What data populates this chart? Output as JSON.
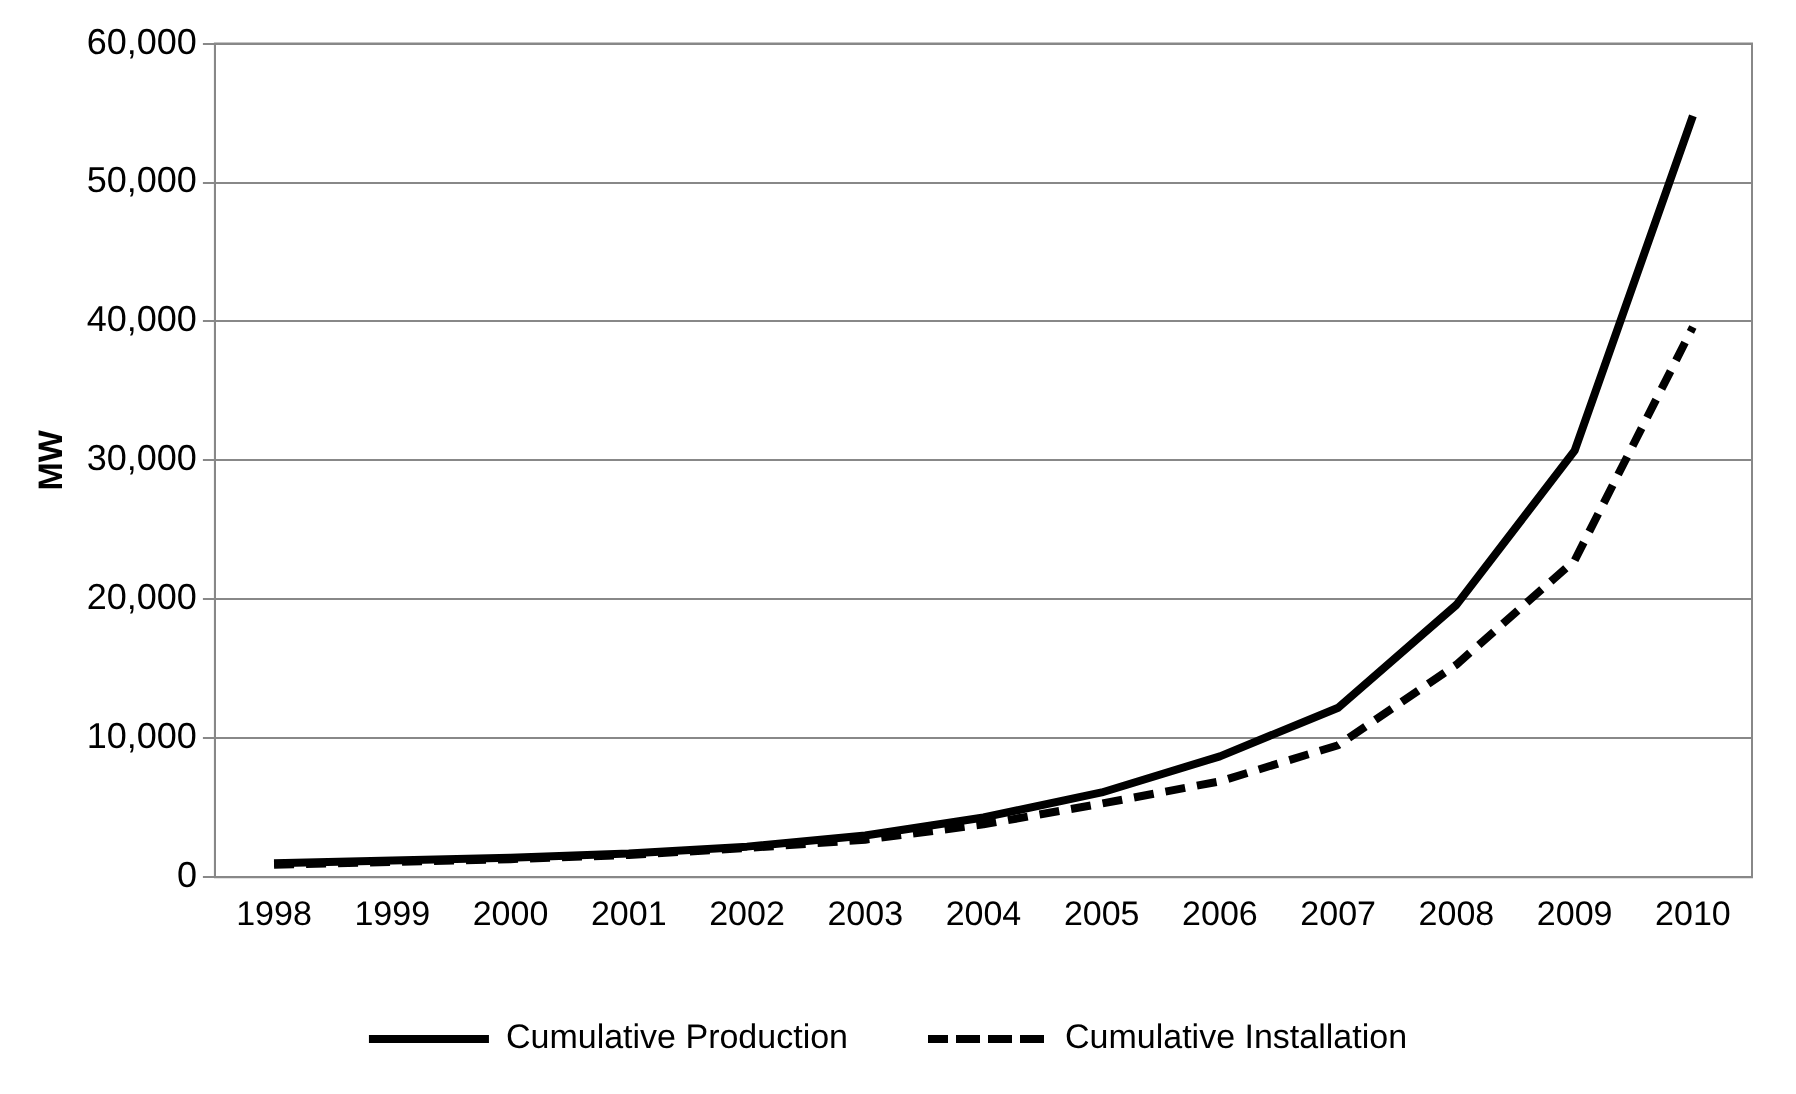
{
  "chart_data": {
    "type": "line",
    "ylabel": "MW",
    "categories": [
      "1998",
      "1999",
      "2000",
      "2001",
      "2002",
      "2003",
      "2004",
      "2005",
      "2006",
      "2007",
      "2008",
      "2009",
      "2010"
    ],
    "series": [
      {
        "name": "Cumulative Production",
        "color": "#000000",
        "line_style": "solid",
        "values": [
          1000,
          1200,
          1400,
          1700,
          2200,
          3000,
          4300,
          6100,
          8700,
          12200,
          19600,
          30700,
          54800
        ]
      },
      {
        "name": "Cumulative Installation",
        "color": "#000000",
        "line_style": "dashed",
        "values": [
          900,
          1100,
          1300,
          1600,
          2100,
          2700,
          3800,
          5300,
          6900,
          9500,
          15300,
          22800,
          39600
        ]
      }
    ],
    "ylim": [
      0,
      60000
    ],
    "yticks": [
      {
        "value": 0,
        "label": "0"
      },
      {
        "value": 10000,
        "label": "10,000"
      },
      {
        "value": 20000,
        "label": "20,000"
      },
      {
        "value": 30000,
        "label": "30,000"
      },
      {
        "value": 40000,
        "label": "40,000"
      },
      {
        "value": 50000,
        "label": "50,000"
      },
      {
        "value": 60000,
        "label": "60,000"
      }
    ],
    "grid": "y",
    "legend": "bottom",
    "marker": "none"
  }
}
